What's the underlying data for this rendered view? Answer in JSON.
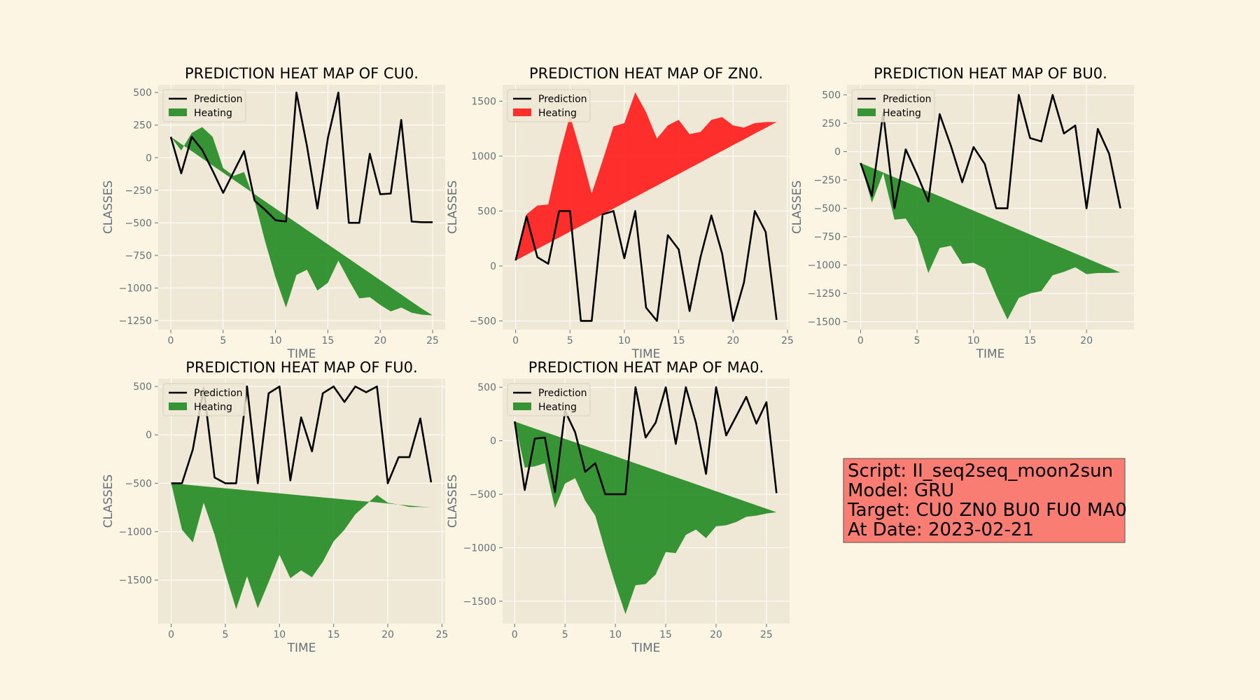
{
  "figure": {
    "background": "#fcf5e3",
    "axes_background": "#efe8d6",
    "grid_color": "#ffffff"
  },
  "chart_data": [
    {
      "type": "line",
      "title": "PREDICTION HEAT MAP OF CU0.",
      "xlabel": "TIME",
      "ylabel": "CLASSES",
      "xlim": [
        -1.2,
        26.2
      ],
      "ylim": [
        -1320,
        560
      ],
      "xticks": [
        0,
        5,
        10,
        15,
        20,
        25
      ],
      "yticks": [
        500,
        250,
        0,
        -250,
        -500,
        -750,
        -1000,
        -1250
      ],
      "legend": [
        "Prediction",
        "Heating"
      ],
      "legend_loc": "upper left",
      "grid": true,
      "heating_color": "#228b22",
      "prediction": {
        "name": "Prediction",
        "x": [
          0,
          1,
          2,
          3,
          4,
          5,
          6,
          7,
          8,
          9,
          10,
          11,
          12,
          13,
          14,
          15,
          16,
          17,
          18,
          19,
          20,
          21,
          22,
          23,
          24,
          25
        ],
        "values": [
          160,
          -120,
          160,
          60,
          -100,
          -270,
          -110,
          50,
          -330,
          -400,
          -480,
          -490,
          500,
          90,
          -390,
          150,
          500,
          -500,
          -500,
          30,
          -280,
          -275,
          290,
          -490,
          -495,
          -495
        ]
      },
      "heating": {
        "name": "Heating",
        "x": [
          0,
          1,
          2,
          3,
          4,
          5,
          6,
          7,
          8,
          9,
          10,
          11,
          12,
          13,
          14,
          15,
          16,
          17,
          18,
          19,
          20,
          21,
          22,
          23,
          24,
          25
        ],
        "base": [
          160,
          105,
          50,
          -5,
          -60,
          -115,
          -170,
          -225,
          -280,
          -335,
          -390,
          -445,
          -500,
          -555,
          -610,
          -665,
          -720,
          -775,
          -830,
          -885,
          -940,
          -995,
          -1050,
          -1105,
          -1160,
          -1210
        ],
        "values": [
          160,
          55,
          190,
          235,
          160,
          -80,
          -140,
          -110,
          -330,
          -640,
          -920,
          -1150,
          -900,
          -860,
          -1020,
          -960,
          -790,
          -940,
          -1080,
          -1070,
          -1130,
          -1180,
          -1150,
          -1190,
          -1205,
          -1210
        ]
      }
    },
    {
      "type": "line",
      "title": "PREDICTION HEAT MAP OF ZN0.",
      "xlabel": "TIME",
      "ylabel": "CLASSES",
      "xlim": [
        -1.2,
        25.2
      ],
      "ylim": [
        -580,
        1650
      ],
      "xticks": [
        0,
        5,
        10,
        15,
        20,
        25
      ],
      "yticks": [
        1500,
        1000,
        500,
        0,
        -500
      ],
      "legend": [
        "Prediction",
        "Heating"
      ],
      "legend_loc": "upper left",
      "grid": true,
      "heating_color": "#ff1a1a",
      "prediction": {
        "name": "Prediction",
        "x": [
          0,
          1,
          2,
          3,
          4,
          5,
          6,
          7,
          8,
          9,
          10,
          11,
          12,
          13,
          14,
          15,
          16,
          17,
          18,
          19,
          20,
          21,
          22,
          23,
          24
        ],
        "values": [
          50,
          450,
          80,
          20,
          500,
          500,
          -500,
          -500,
          470,
          500,
          70,
          500,
          -380,
          -500,
          280,
          150,
          -410,
          80,
          460,
          110,
          -500,
          -150,
          500,
          310,
          -490
        ]
      },
      "heating": {
        "name": "Heating",
        "x": [
          0,
          1,
          2,
          3,
          4,
          5,
          6,
          7,
          8,
          9,
          10,
          11,
          12,
          13,
          14,
          15,
          16,
          17,
          18,
          19,
          20,
          21,
          22,
          23,
          24
        ],
        "base": [
          50,
          102,
          155,
          207,
          260,
          312,
          365,
          417,
          470,
          522,
          575,
          627,
          680,
          732,
          785,
          837,
          890,
          942,
          995,
          1047,
          1100,
          1152,
          1205,
          1257,
          1310
        ],
        "values": [
          50,
          470,
          550,
          560,
          1000,
          1370,
          1030,
          660,
          960,
          1270,
          1300,
          1580,
          1400,
          1160,
          1280,
          1330,
          1200,
          1220,
          1330,
          1355,
          1280,
          1260,
          1300,
          1310,
          1310
        ]
      }
    },
    {
      "type": "line",
      "title": "PREDICTION HEAT MAP OF BU0.",
      "xlabel": "TIME",
      "ylabel": "CLASSES",
      "xlim": [
        -1.2,
        24.2
      ],
      "ylim": [
        -1570,
        590
      ],
      "xticks": [
        0,
        5,
        10,
        15,
        20
      ],
      "yticks": [
        500,
        250,
        0,
        -250,
        -500,
        -750,
        -1000,
        -1250,
        -1500
      ],
      "legend": [
        "Prediction",
        "Heating"
      ],
      "legend_loc": "upper left",
      "grid": true,
      "heating_color": "#228b22",
      "prediction": {
        "name": "Prediction",
        "x": [
          0,
          1,
          2,
          3,
          4,
          5,
          6,
          7,
          8,
          9,
          10,
          11,
          12,
          13,
          14,
          15,
          16,
          17,
          18,
          19,
          20,
          21,
          22,
          23
        ],
        "values": [
          -100,
          -390,
          340,
          -500,
          20,
          -200,
          -440,
          330,
          50,
          -270,
          40,
          -110,
          -500,
          -500,
          500,
          120,
          90,
          500,
          160,
          230,
          -500,
          200,
          -20,
          -500
        ]
      },
      "heating": {
        "name": "Heating",
        "x": [
          0,
          1,
          2,
          3,
          4,
          5,
          6,
          7,
          8,
          9,
          10,
          11,
          12,
          13,
          14,
          15,
          16,
          17,
          18,
          19,
          20,
          21,
          22,
          23
        ],
        "base": [
          -100,
          -142,
          -184,
          -226,
          -268,
          -310,
          -352,
          -394,
          -436,
          -478,
          -520,
          -562,
          -604,
          -646,
          -688,
          -730,
          -772,
          -814,
          -856,
          -898,
          -940,
          -982,
          -1024,
          -1066
        ],
        "values": [
          -100,
          -450,
          -190,
          -600,
          -590,
          -750,
          -1070,
          -850,
          -830,
          -990,
          -980,
          -1030,
          -1270,
          -1480,
          -1290,
          -1250,
          -1230,
          -1090,
          -1060,
          -1020,
          -1080,
          -1070,
          -1070,
          -1066
        ]
      }
    },
    {
      "type": "line",
      "title": "PREDICTION HEAT MAP OF FU0.",
      "xlabel": "TIME",
      "ylabel": "CLASSES",
      "xlim": [
        -1.2,
        25.3
      ],
      "ylim": [
        -1950,
        580
      ],
      "xticks": [
        0,
        5,
        10,
        15,
        20,
        25
      ],
      "yticks": [
        500,
        0,
        -500,
        -1000,
        -1500
      ],
      "legend": [
        "Prediction",
        "Heating"
      ],
      "legend_loc": "upper left",
      "grid": true,
      "heating_color": "#228b22",
      "prediction": {
        "name": "Prediction",
        "x": [
          0,
          1,
          2,
          3,
          4,
          5,
          6,
          7,
          8,
          9,
          10,
          11,
          12,
          13,
          14,
          15,
          16,
          17,
          18,
          19,
          20,
          21,
          22,
          23,
          24
        ],
        "values": [
          -500,
          -500,
          -150,
          480,
          -440,
          -500,
          -500,
          500,
          -500,
          430,
          500,
          -470,
          180,
          -170,
          430,
          500,
          340,
          500,
          440,
          500,
          -500,
          -230,
          -230,
          170,
          -490
        ]
      },
      "heating": {
        "name": "Heating",
        "x": [
          0,
          1,
          2,
          3,
          4,
          5,
          6,
          7,
          8,
          9,
          10,
          11,
          12,
          13,
          14,
          15,
          16,
          17,
          18,
          19,
          20,
          21,
          22,
          23,
          24
        ],
        "base": [
          -500,
          -510,
          -520,
          -531,
          -541,
          -552,
          -562,
          -573,
          -583,
          -594,
          -604,
          -615,
          -625,
          -635,
          -646,
          -656,
          -667,
          -677,
          -688,
          -698,
          -709,
          -719,
          -730,
          -740,
          -750
        ],
        "values": [
          -500,
          -980,
          -1110,
          -700,
          -1030,
          -1430,
          -1800,
          -1460,
          -1790,
          -1520,
          -1240,
          -1480,
          -1400,
          -1470,
          -1310,
          -1100,
          -980,
          -820,
          -720,
          -620,
          -700,
          -720,
          -745,
          -745,
          -750
        ]
      }
    },
    {
      "type": "line",
      "title": "PREDICTION HEAT MAP OF MA0.",
      "xlabel": "TIME",
      "ylabel": "CLASSES",
      "xlim": [
        -1.2,
        27.3
      ],
      "ylim": [
        -1710,
        580
      ],
      "xticks": [
        0,
        5,
        10,
        15,
        20,
        25
      ],
      "yticks": [
        500,
        0,
        -500,
        -1000,
        -1500
      ],
      "legend": [
        "Prediction",
        "Heating"
      ],
      "legend_loc": "upper left",
      "grid": true,
      "heating_color": "#228b22",
      "prediction": {
        "name": "Prediction",
        "x": [
          0,
          1,
          2,
          3,
          4,
          5,
          6,
          7,
          8,
          9,
          10,
          11,
          12,
          13,
          14,
          15,
          16,
          17,
          18,
          19,
          20,
          21,
          22,
          23,
          24,
          25,
          26
        ],
        "values": [
          180,
          -460,
          20,
          30,
          -480,
          280,
          80,
          -290,
          -210,
          -500,
          -500,
          -500,
          500,
          30,
          170,
          500,
          -30,
          500,
          170,
          -310,
          500,
          50,
          230,
          410,
          160,
          360,
          -490
        ]
      },
      "heating": {
        "name": "Heating",
        "x": [
          0,
          1,
          2,
          3,
          4,
          5,
          6,
          7,
          8,
          9,
          10,
          11,
          12,
          13,
          14,
          15,
          16,
          17,
          18,
          19,
          20,
          21,
          22,
          23,
          24,
          25,
          26
        ],
        "base": [
          180,
          147,
          114,
          82,
          50,
          17,
          -15,
          -48,
          -80,
          -113,
          -145,
          -178,
          -211,
          -244,
          -276,
          -309,
          -341,
          -374,
          -406,
          -439,
          -472,
          -504,
          -537,
          -570,
          -602,
          -635,
          -668
        ],
        "values": [
          180,
          -250,
          -240,
          -210,
          -630,
          -400,
          -350,
          -560,
          -700,
          -1030,
          -1340,
          -1620,
          -1350,
          -1340,
          -1250,
          -1040,
          -1050,
          -880,
          -830,
          -910,
          -800,
          -790,
          -760,
          -710,
          -700,
          -680,
          -668
        ]
      }
    }
  ],
  "info_box": {
    "background": "#fa7d73",
    "lines": [
      "Script: II_seq2seq_moon2sun",
      "Model: GRU",
      "Target: CU0 ZN0 BU0 FU0 MA0",
      "At Date: 2023-02-21"
    ]
  }
}
